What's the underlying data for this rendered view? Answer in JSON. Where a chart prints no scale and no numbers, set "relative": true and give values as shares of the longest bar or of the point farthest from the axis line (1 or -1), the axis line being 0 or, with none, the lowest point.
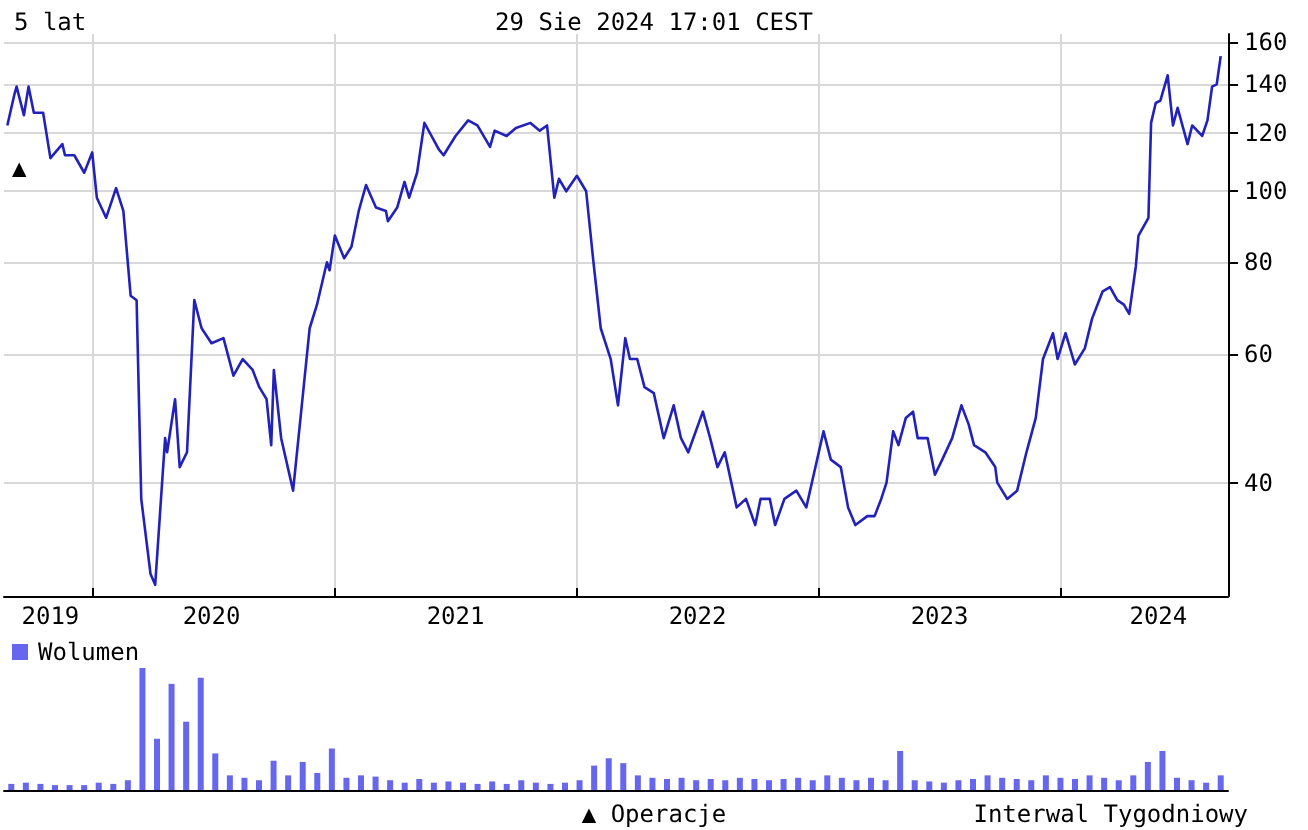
{
  "chart_data": [
    {
      "type": "line",
      "title": "5 lat",
      "subtitle": "29 Sie 2024 17:01 CEST",
      "log": true,
      "grid": true,
      "marker": "none",
      "line_style": "solid",
      "xlim": [
        "2019-08-21",
        "2024-09-09"
      ],
      "xticks": [
        {
          "value": "2020-01-01",
          "label": null
        },
        {
          "value": "2021-01-01",
          "label": null
        },
        {
          "value": "2022-01-01",
          "label": null
        },
        {
          "value": "2023-01-01",
          "label": null
        },
        {
          "value": "2024-01-01",
          "label": null
        },
        {
          "value": "2019-10-30",
          "label": "2019"
        },
        {
          "value": "2020-06-29",
          "label": "2020"
        },
        {
          "value": "2021-07-02",
          "label": "2021"
        },
        {
          "value": "2022-07-02",
          "label": "2022"
        },
        {
          "value": "2023-07-02",
          "label": "2023"
        },
        {
          "value": "2024-05-27",
          "label": "2024"
        }
      ],
      "ylim": [
        28,
        164
      ],
      "yticks": [
        40,
        60,
        80,
        100,
        120,
        140,
        160
      ],
      "annotations": [
        "▲"
      ],
      "series": [
        {
          "color": "#2222bb",
          "x": [
            "2019-08-26",
            "2019-09-06",
            "2019-09-09",
            "2019-09-20",
            "2019-09-27",
            "2019-10-05",
            "2019-10-19",
            "2019-10-30",
            "2019-11-17",
            "2019-11-21",
            "2019-12-05",
            "2019-12-20",
            "2020-01-01",
            "2020-01-08",
            "2020-01-22",
            "2020-02-06",
            "2020-02-17",
            "2020-02-28",
            "2020-03-08",
            "2020-03-15",
            "2020-03-29",
            "2020-04-05",
            "2020-04-20",
            "2020-04-23",
            "2020-05-05",
            "2020-05-12",
            "2020-05-23",
            "2020-06-03",
            "2020-06-14",
            "2020-06-29",
            "2020-07-17",
            "2020-08-01",
            "2020-08-15",
            "2020-08-30",
            "2020-09-09",
            "2020-09-20",
            "2020-09-27",
            "2020-10-01",
            "2020-10-12",
            "2020-10-30",
            "2020-11-24",
            "2020-12-05",
            "2020-12-20",
            "2020-12-24",
            "2021-01-01",
            "2021-01-15",
            "2021-01-26",
            "2021-02-06",
            "2021-02-17",
            "2021-03-04",
            "2021-03-19",
            "2021-03-22",
            "2021-04-05",
            "2021-04-16",
            "2021-04-23",
            "2021-05-05",
            "2021-05-16",
            "2021-06-07",
            "2021-06-14",
            "2021-07-02",
            "2021-07-21",
            "2021-08-04",
            "2021-08-23",
            "2021-08-30",
            "2021-09-17",
            "2021-10-01",
            "2021-10-23",
            "2021-11-06",
            "2021-11-17",
            "2021-11-28",
            "2021-12-05",
            "2021-12-16",
            "2022-01-01",
            "2022-01-15",
            "2022-01-26",
            "2022-02-06",
            "2022-02-21",
            "2022-03-04",
            "2022-03-15",
            "2022-03-22",
            "2022-04-02",
            "2022-04-13",
            "2022-04-27",
            "2022-05-12",
            "2022-05-27",
            "2022-06-07",
            "2022-06-18",
            "2022-07-10",
            "2022-07-21",
            "2022-08-01",
            "2022-08-12",
            "2022-08-30",
            "2022-09-13",
            "2022-09-27",
            "2022-10-05",
            "2022-10-19",
            "2022-10-27",
            "2022-11-10",
            "2022-11-28",
            "2022-12-13",
            "2023-01-08",
            "2023-01-19",
            "2023-02-03",
            "2023-02-14",
            "2023-02-25",
            "2023-03-15",
            "2023-03-26",
            "2023-04-05",
            "2023-04-13",
            "2023-04-23",
            "2023-05-01",
            "2023-05-12",
            "2023-05-23",
            "2023-05-30",
            "2023-06-14",
            "2023-06-25",
            "2023-07-06",
            "2023-07-21",
            "2023-08-04",
            "2023-08-15",
            "2023-08-23",
            "2023-09-09",
            "2023-09-24",
            "2023-09-27",
            "2023-10-12",
            "2023-10-27",
            "2023-11-10",
            "2023-11-24",
            "2023-12-05",
            "2023-12-20",
            "2023-12-27",
            "2024-01-08",
            "2024-01-22",
            "2024-02-06",
            "2024-02-17",
            "2024-03-04",
            "2024-03-15",
            "2024-03-26",
            "2024-04-05",
            "2024-04-13",
            "2024-04-23",
            "2024-04-27",
            "2024-05-12",
            "2024-05-16",
            "2024-05-23",
            "2024-05-30",
            "2024-06-10",
            "2024-06-18",
            "2024-06-25",
            "2024-07-10",
            "2024-07-17",
            "2024-08-01",
            "2024-08-09",
            "2024-08-16",
            "2024-08-23",
            "2024-08-29"
          ],
          "values": [
            123,
            136,
            139,
            127,
            139,
            128,
            128,
            111,
            116,
            112,
            112,
            106,
            113,
            98,
            92,
            101,
            94,
            72,
            71,
            38,
            30,
            29,
            46,
            44,
            52,
            42,
            44,
            71,
            65,
            62,
            63,
            56,
            59,
            57,
            54,
            52,
            45,
            57,
            46,
            39,
            65,
            70,
            80,
            78,
            87,
            81,
            84,
            94,
            102,
            95,
            94,
            91,
            95,
            103,
            98,
            106,
            124,
            114,
            112,
            119,
            125,
            123,
            115,
            121,
            119,
            122,
            124,
            121,
            123,
            98,
            104,
            100,
            105,
            100,
            80,
            65,
            59,
            51,
            63,
            59,
            59,
            54,
            53,
            46,
            51,
            46,
            44,
            50,
            46,
            42,
            44,
            37,
            38,
            35,
            38,
            38,
            35,
            38,
            39,
            37,
            47,
            43,
            42,
            37,
            35,
            36,
            36,
            38,
            40,
            47,
            45,
            49,
            50,
            46,
            46,
            41,
            43,
            46,
            51,
            48,
            45,
            44,
            42,
            40,
            38,
            39,
            44,
            49,
            59,
            64,
            59,
            64,
            58,
            61,
            67,
            73,
            74,
            71,
            70,
            68,
            79,
            87,
            92,
            124,
            132,
            133,
            144,
            123,
            130,
            116,
            123,
            119,
            125,
            139,
            140,
            153
          ]
        }
      ]
    },
    {
      "type": "bar",
      "relative": true,
      "legend": "top left",
      "categories": [
        null,
        null,
        null,
        null,
        null,
        null,
        null,
        null,
        null,
        null,
        null,
        null,
        null,
        null,
        null,
        null,
        null,
        null,
        null,
        null,
        null,
        null,
        null,
        null,
        null,
        null,
        null,
        null,
        null,
        null,
        null,
        null,
        null,
        null,
        null,
        null,
        null,
        null,
        null,
        null,
        null,
        null,
        null,
        null,
        null,
        null,
        null,
        null,
        null,
        null,
        null,
        null,
        null,
        null,
        null,
        null,
        null,
        null,
        null,
        null,
        null,
        null,
        null,
        null,
        null,
        null,
        null,
        null,
        null,
        null,
        null,
        null,
        null,
        null,
        null,
        null,
        null,
        null,
        null,
        null,
        null,
        null,
        null,
        null
      ],
      "annotations": [
        "▲ Operacje",
        "Interwal Tygodniowy"
      ],
      "series": [
        {
          "name": "Wolumen",
          "color": "#6666ee",
          "values": [
            0.05,
            0.06,
            0.05,
            0.04,
            0.04,
            0.04,
            0.06,
            0.05,
            0.08,
            1,
            0.42,
            0.87,
            0.56,
            0.92,
            0.3,
            0.12,
            0.1,
            0.08,
            0.24,
            0.12,
            0.23,
            0.14,
            0.34,
            0.1,
            0.12,
            0.11,
            0.08,
            0.06,
            0.09,
            0.06,
            0.07,
            0.06,
            0.05,
            0.07,
            0.05,
            0.08,
            0.06,
            0.05,
            0.06,
            0.08,
            0.2,
            0.26,
            0.22,
            0.12,
            0.1,
            0.09,
            0.1,
            0.08,
            0.09,
            0.08,
            0.1,
            0.09,
            0.08,
            0.09,
            0.1,
            0.08,
            0.12,
            0.1,
            0.08,
            0.1,
            0.08,
            0.32,
            0.08,
            0.07,
            0.06,
            0.08,
            0.09,
            0.12,
            0.1,
            0.09,
            0.08,
            0.12,
            0.1,
            0.09,
            0.12,
            0.1,
            0.08,
            0.12,
            0.23,
            0.32,
            0.1,
            0.08,
            0.06,
            0.12
          ]
        }
      ]
    }
  ]
}
